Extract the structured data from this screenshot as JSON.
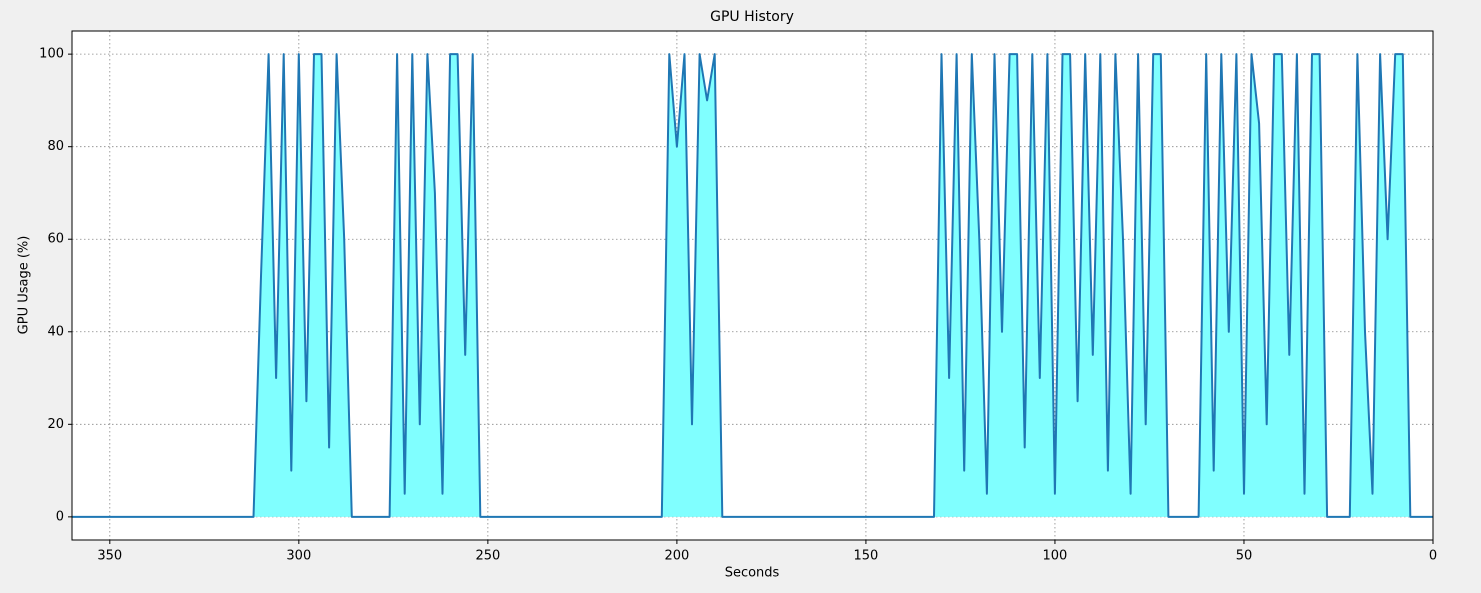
{
  "chart_data": {
    "type": "area",
    "title": "GPU History",
    "x_label": "Seconds",
    "y_label": "GPU Usage (%)",
    "x": [
      360,
      358,
      356,
      354,
      352,
      350,
      348,
      346,
      344,
      342,
      340,
      338,
      336,
      334,
      332,
      330,
      328,
      326,
      324,
      322,
      320,
      318,
      316,
      314,
      312,
      310,
      308,
      306,
      304,
      302,
      300,
      298,
      296,
      294,
      292,
      290,
      288,
      286,
      284,
      282,
      280,
      278,
      276,
      274,
      272,
      270,
      268,
      266,
      264,
      262,
      260,
      258,
      256,
      254,
      252,
      250,
      248,
      246,
      244,
      242,
      240,
      238,
      236,
      234,
      232,
      230,
      228,
      226,
      224,
      222,
      220,
      218,
      216,
      214,
      212,
      210,
      208,
      206,
      204,
      202,
      200,
      198,
      196,
      194,
      192,
      190,
      188,
      186,
      184,
      182,
      180,
      178,
      176,
      174,
      172,
      170,
      168,
      166,
      164,
      162,
      160,
      158,
      156,
      154,
      152,
      150,
      148,
      146,
      144,
      142,
      140,
      138,
      136,
      134,
      132,
      130,
      128,
      126,
      124,
      122,
      120,
      118,
      116,
      114,
      112,
      110,
      108,
      106,
      104,
      102,
      100,
      98,
      96,
      94,
      92,
      90,
      88,
      86,
      84,
      82,
      80,
      78,
      76,
      74,
      72,
      70,
      68,
      66,
      64,
      62,
      60,
      58,
      56,
      54,
      52,
      50,
      48,
      46,
      44,
      42,
      40,
      38,
      36,
      34,
      32,
      30,
      28,
      26,
      24,
      22,
      20,
      18,
      16,
      14,
      12,
      10,
      8,
      6,
      4,
      2,
      0
    ],
    "series": [
      {
        "name": "GPU",
        "color": "#1f77b4",
        "fill": "#80ffff",
        "values": [
          0,
          0,
          0,
          0,
          0,
          0,
          0,
          0,
          0,
          0,
          0,
          0,
          0,
          0,
          0,
          0,
          0,
          0,
          0,
          0,
          0,
          0,
          0,
          0,
          0,
          52,
          100,
          30,
          100,
          10,
          100,
          25,
          100,
          100,
          15,
          100,
          60,
          0,
          0,
          0,
          0,
          0,
          0,
          100,
          5,
          100,
          20,
          100,
          70,
          5,
          100,
          100,
          35,
          100,
          0,
          0,
          0,
          0,
          0,
          0,
          0,
          0,
          0,
          0,
          0,
          0,
          0,
          0,
          0,
          0,
          0,
          0,
          0,
          0,
          0,
          0,
          0,
          0,
          0,
          100,
          80,
          100,
          20,
          100,
          90,
          100,
          0,
          0,
          0,
          0,
          0,
          0,
          0,
          0,
          0,
          0,
          0,
          0,
          0,
          0,
          0,
          0,
          0,
          0,
          0,
          0,
          0,
          0,
          0,
          0,
          0,
          0,
          0,
          0,
          0,
          100,
          30,
          100,
          10,
          100,
          60,
          5,
          100,
          40,
          100,
          100,
          15,
          100,
          30,
          100,
          5,
          100,
          100,
          25,
          100,
          35,
          100,
          10,
          100,
          60,
          5,
          100,
          20,
          100,
          100,
          0,
          0,
          0,
          0,
          0,
          100,
          10,
          100,
          40,
          100,
          5,
          100,
          85,
          20,
          100,
          100,
          35,
          100,
          5,
          100,
          100,
          0,
          0,
          0,
          0,
          100,
          40,
          5,
          100,
          60,
          100,
          100,
          0,
          0,
          0,
          0
        ]
      }
    ],
    "xlim": [
      360,
      0
    ],
    "ylim": [
      -5,
      105
    ],
    "xticks": [
      350,
      300,
      250,
      200,
      150,
      100,
      50,
      0
    ],
    "yticks": [
      0,
      20,
      40,
      60,
      80,
      100
    ],
    "grid": true
  }
}
